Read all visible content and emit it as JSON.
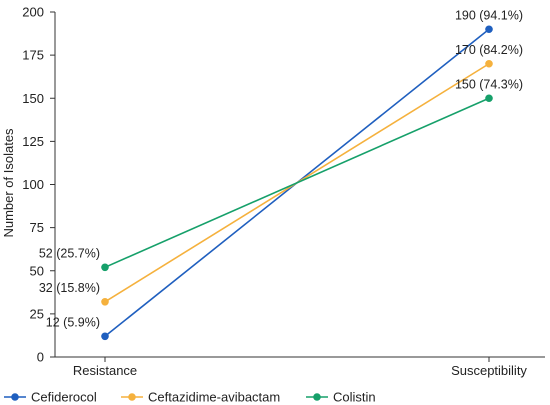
{
  "chart_data": {
    "type": "line",
    "categories": [
      "Resistance",
      "Susceptibility"
    ],
    "ylabel": "Number of Isolates",
    "xlabel": "",
    "ylim": [
      0,
      200
    ],
    "yticks": [
      0,
      25,
      50,
      75,
      100,
      125,
      150,
      175,
      200
    ],
    "grid": false,
    "legend_position": "bottom",
    "series": [
      {
        "name": "Cefiderocol",
        "color": "#1f5fbf",
        "values": [
          12,
          190
        ],
        "labels": [
          "12 (5.9%)",
          "190 (94.1%)"
        ]
      },
      {
        "name": "Ceftazidime-avibactam",
        "color": "#f5b13d",
        "values": [
          32,
          170
        ],
        "labels": [
          "32 (15.8%)",
          "170 (84.2%)"
        ]
      },
      {
        "name": "Colistin",
        "color": "#16a06a",
        "values": [
          52,
          150
        ],
        "labels": [
          "52 (25.7%)",
          "150 (74.3%)"
        ]
      }
    ]
  }
}
